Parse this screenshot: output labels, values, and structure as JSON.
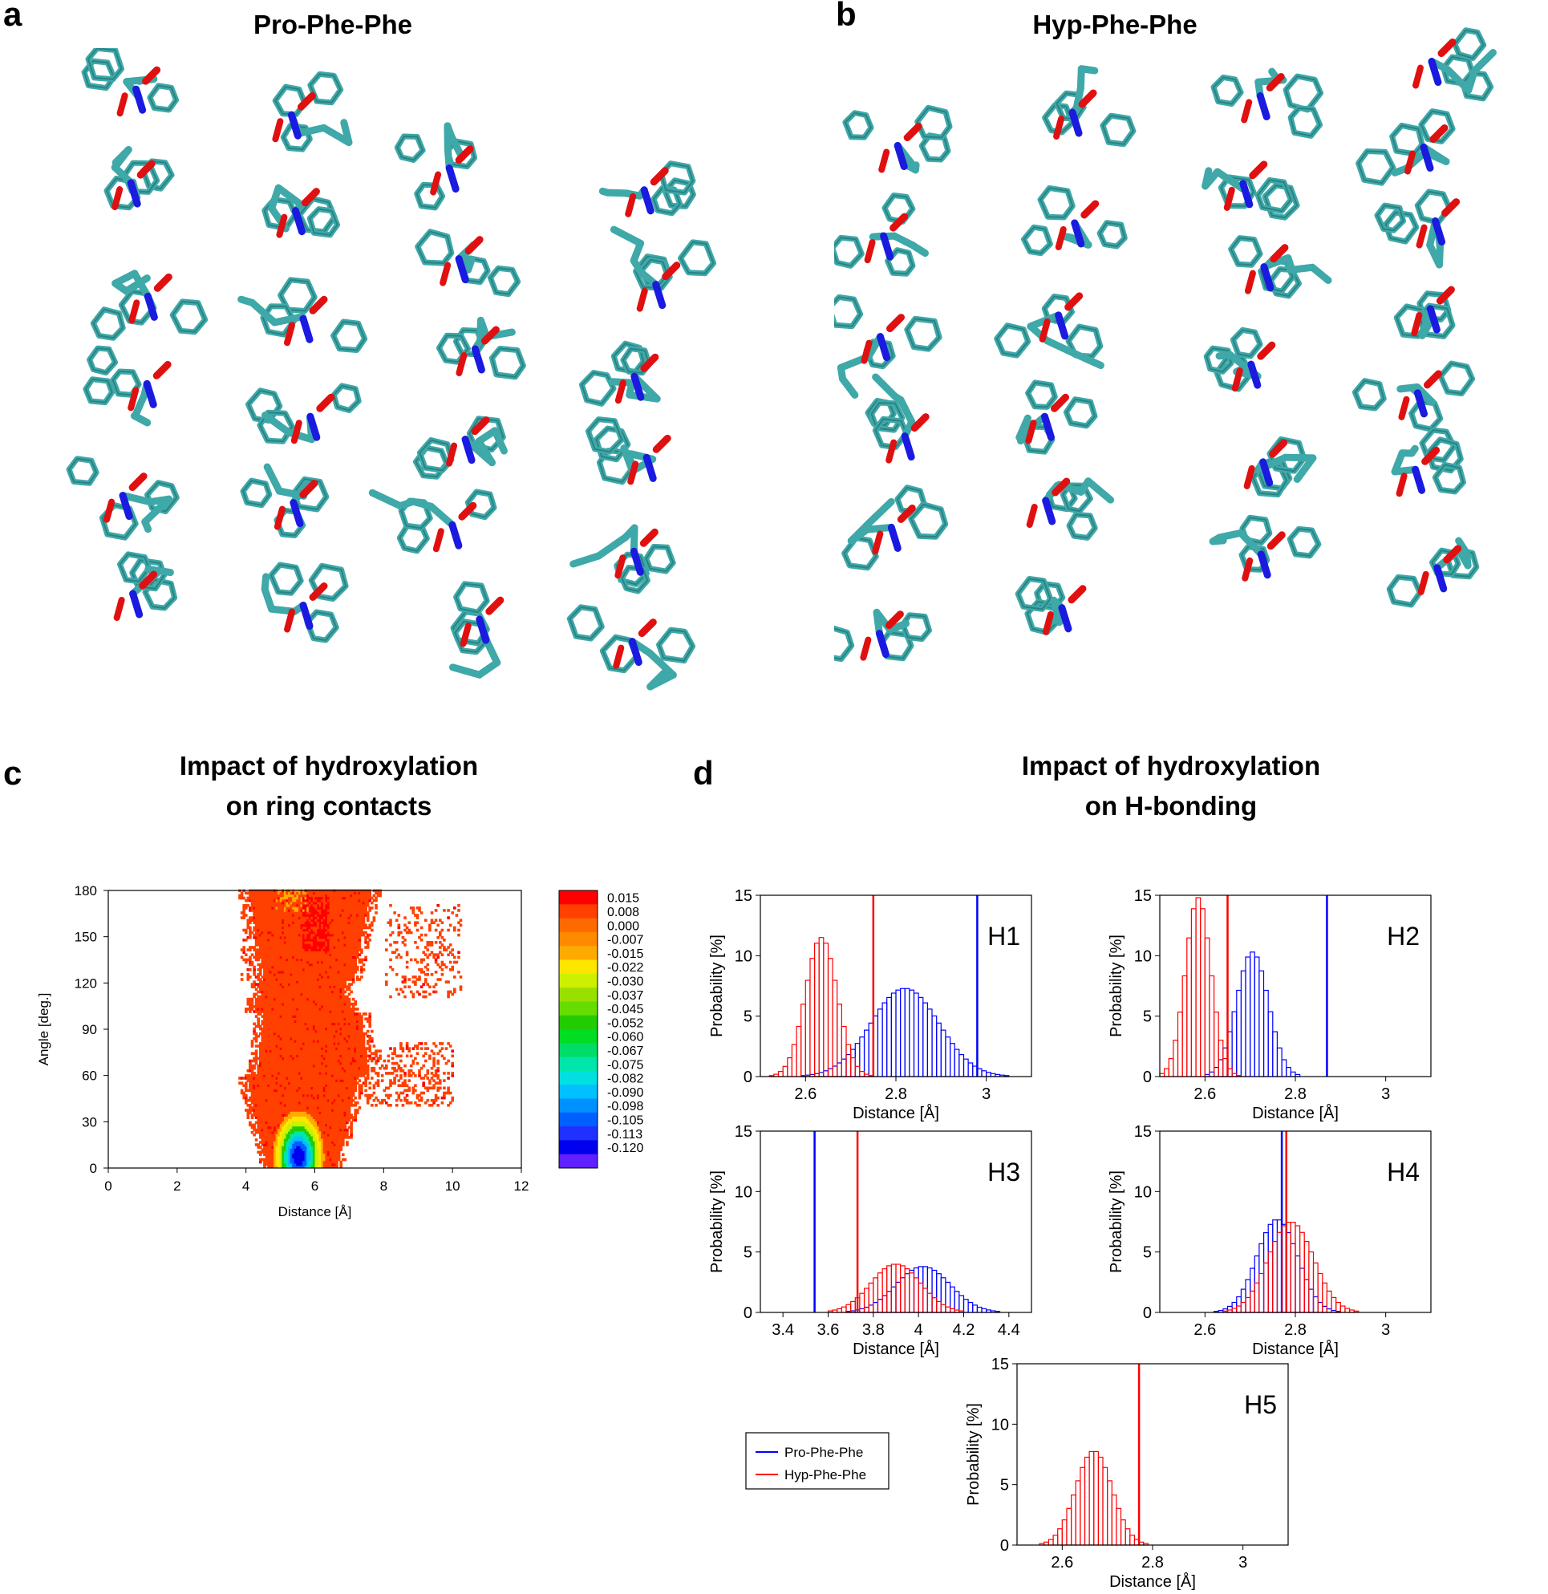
{
  "figure": {
    "panel_a": {
      "letter": "a",
      "title": "Pro-Phe-Phe"
    },
    "panel_b": {
      "letter": "b",
      "title": "Hyp-Phe-Phe"
    },
    "panel_c": {
      "letter": "c",
      "title_line1": "Impact of hydroxylation",
      "title_line2": "on ring contacts"
    },
    "panel_d": {
      "letter": "d",
      "title_line1": "Impact of hydroxylation",
      "title_line2": "on H-bonding"
    }
  },
  "colors": {
    "carbon": "#3fa8a8",
    "oxygen": "#e01010",
    "nitrogen": "#1a1ae0",
    "pro_series": "#0000ff",
    "hyp_series": "#ff0000"
  },
  "chart_data": [
    {
      "type": "heatmap",
      "panel": "c",
      "xlabel": "Distance [Å]",
      "ylabel": "Angle [deg.]",
      "xlim": [
        0,
        12
      ],
      "ylim": [
        0,
        180
      ],
      "xticks": [
        0,
        2,
        4,
        6,
        8,
        10,
        12
      ],
      "yticks": [
        0,
        30,
        60,
        90,
        120,
        150,
        180
      ],
      "colorbar_levels": [
        "0.015",
        "0.008",
        "0.000",
        "-0.007",
        "-0.015",
        "-0.022",
        "-0.030",
        "-0.037",
        "-0.045",
        "-0.052",
        "-0.060",
        "-0.067",
        "-0.075",
        "-0.082",
        "-0.090",
        "-0.098",
        "-0.105",
        "-0.113",
        "-0.120"
      ],
      "colorbar_colors": [
        "#ff0000",
        "#ff4000",
        "#ff6a00",
        "#ff8a00",
        "#ffaa00",
        "#ffe600",
        "#ccf000",
        "#99e000",
        "#66dd00",
        "#22cc00",
        "#00dd22",
        "#00dd66",
        "#00e6aa",
        "#00e0e0",
        "#00c0ff",
        "#0090ff",
        "#0060ff",
        "#2030ff",
        "#0000ee",
        "#6020ff"
      ],
      "minimum": {
        "x": 5.5,
        "y": 7,
        "value": "-0.120"
      }
    },
    {
      "type": "bar",
      "panel": "d-H1",
      "label": "H1",
      "xlabel": "Distance [Å]",
      "ylabel": "Probability [%]",
      "xlim": [
        2.5,
        3.1
      ],
      "ylim": [
        0,
        15
      ],
      "xticks": [
        "2.6",
        "2.8",
        "3"
      ],
      "yticks": [
        0,
        5,
        10,
        15
      ],
      "series": [
        {
          "name": "Pro-Phe-Phe",
          "color": "#0000ff",
          "mean": 2.82,
          "sd": 0.075,
          "peak": 7.3,
          "marker": 2.98
        },
        {
          "name": "Hyp-Phe-Phe",
          "color": "#ff0000",
          "mean": 2.635,
          "sd": 0.035,
          "peak": 11.5,
          "marker": 2.75
        }
      ]
    },
    {
      "type": "bar",
      "panel": "d-H2",
      "label": "H2",
      "xlabel": "Distance [Å]",
      "ylabel": "Probability [%]",
      "xlim": [
        2.5,
        3.1
      ],
      "ylim": [
        0,
        15
      ],
      "xticks": [
        "2.6",
        "2.8",
        "3"
      ],
      "yticks": [
        0,
        5,
        10,
        15
      ],
      "series": [
        {
          "name": "Pro-Phe-Phe",
          "color": "#0000ff",
          "mean": 2.705,
          "sd": 0.035,
          "peak": 10.3,
          "marker": 2.87
        },
        {
          "name": "Hyp-Phe-Phe",
          "color": "#ff0000",
          "mean": 2.585,
          "sd": 0.028,
          "peak": 14.8,
          "marker": 2.65
        }
      ]
    },
    {
      "type": "bar",
      "panel": "d-H3",
      "label": "H3",
      "xlabel": "Distance [Å]",
      "ylabel": "Probability [%]",
      "xlim": [
        3.3,
        4.5
      ],
      "ylim": [
        0,
        15
      ],
      "xticks": [
        "3.4",
        "3.6",
        "3.8",
        "4",
        "4.2",
        "4.4"
      ],
      "yticks": [
        0,
        5,
        10,
        15
      ],
      "series": [
        {
          "name": "Pro-Phe-Phe",
          "color": "#0000ff",
          "mean": 4.02,
          "sd": 0.12,
          "peak": 3.8,
          "marker": 3.54
        },
        {
          "name": "Hyp-Phe-Phe",
          "color": "#ff0000",
          "mean": 3.9,
          "sd": 0.11,
          "peak": 4.0,
          "marker": 3.73
        }
      ]
    },
    {
      "type": "bar",
      "panel": "d-H4",
      "label": "H4",
      "xlabel": "Distance [Å]",
      "ylabel": "Probability [%]",
      "xlim": [
        2.5,
        3.1
      ],
      "ylim": [
        0,
        15
      ],
      "xticks": [
        "2.6",
        "2.8",
        "3"
      ],
      "yticks": [
        0,
        5,
        10,
        15
      ],
      "series": [
        {
          "name": "Pro-Phe-Phe",
          "color": "#0000ff",
          "mean": 2.76,
          "sd": 0.045,
          "peak": 7.7,
          "marker": 2.77
        },
        {
          "name": "Hyp-Phe-Phe",
          "color": "#ff0000",
          "mean": 2.79,
          "sd": 0.05,
          "peak": 7.5,
          "marker": 2.78
        }
      ]
    },
    {
      "type": "bar",
      "panel": "d-H5",
      "label": "H5",
      "xlabel": "Distance [Å]",
      "ylabel": "Probability [%]",
      "xlim": [
        2.5,
        3.1
      ],
      "ylim": [
        0,
        15
      ],
      "xticks": [
        "2.6",
        "2.8",
        "3"
      ],
      "yticks": [
        0,
        5,
        10,
        15
      ],
      "series": [
        {
          "name": "Hyp-Phe-Phe",
          "color": "#ff0000",
          "mean": 2.67,
          "sd": 0.04,
          "peak": 7.8,
          "marker": 2.77
        }
      ]
    }
  ],
  "legend": {
    "items": [
      {
        "name": "Pro-Phe-Phe",
        "color": "#0000ff"
      },
      {
        "name": "Hyp-Phe-Phe",
        "color": "#ff0000"
      }
    ]
  }
}
